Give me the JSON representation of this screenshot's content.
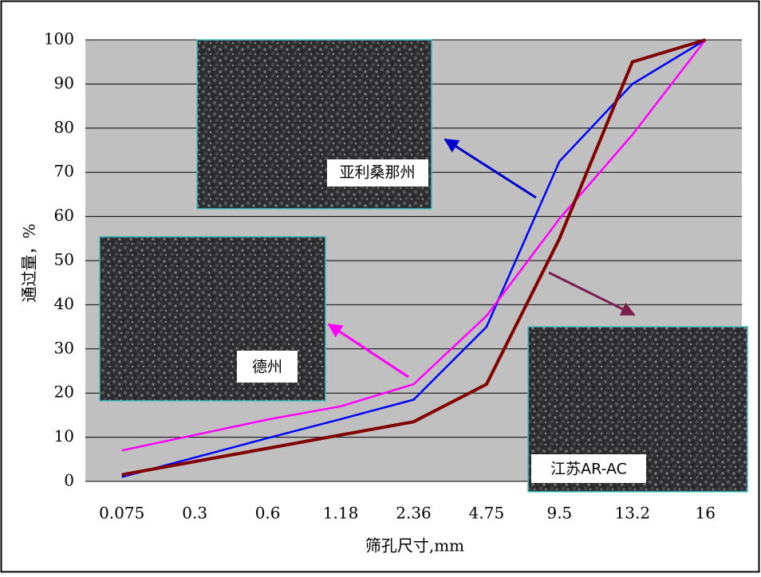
{
  "chart_data": {
    "type": "line",
    "x_label": "筛孔尺寸,mm",
    "y_label": "通过量，%",
    "categories": [
      "0.075",
      "0.3",
      "0.6",
      "1.18",
      "2.36",
      "4.75",
      "9.5",
      "13.2",
      "16"
    ],
    "series": [
      {
        "name": "亚利桑那州",
        "color": "#0000ff",
        "values": [
          1,
          5.4,
          9.8,
          14.1,
          18.5,
          35,
          72.5,
          90,
          100
        ]
      },
      {
        "name": "德州",
        "color": "#ff00ff",
        "values": [
          7,
          10.5,
          14,
          17,
          22,
          37.5,
          59.5,
          78.5,
          100
        ]
      },
      {
        "name": "江苏AR-AC",
        "color": "#800000",
        "values": [
          1.5,
          4.5,
          7.5,
          10.5,
          13.5,
          22,
          55,
          95,
          100
        ]
      }
    ],
    "ylim": [
      0,
      100
    ],
    "yticks": [
      0,
      10,
      20,
      30,
      40,
      50,
      60,
      70,
      80,
      90,
      100
    ],
    "grid": true
  }
}
